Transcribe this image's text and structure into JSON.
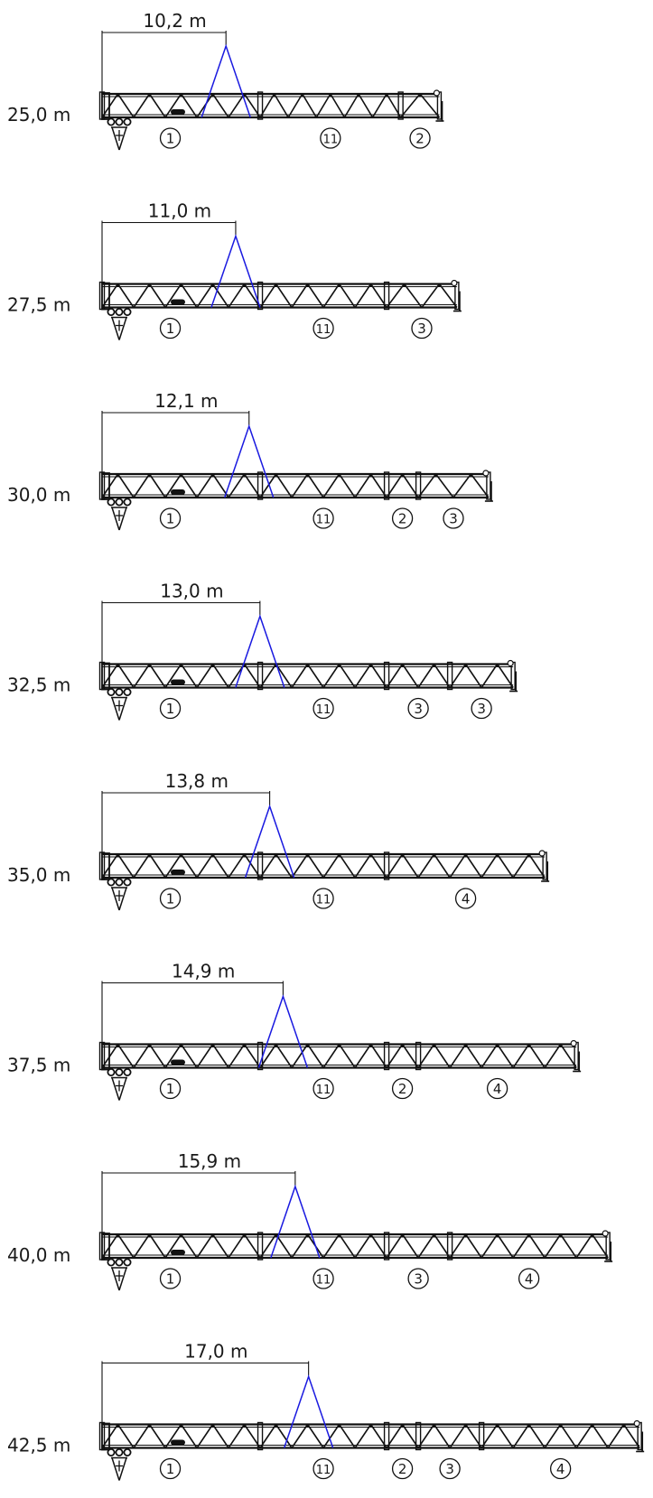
{
  "configurations": [
    {
      "length_label": "25,0 m",
      "span_label": "10,2 m",
      "span_m": 10.2,
      "segments": [
        {
          "label": "1",
          "units": 9
        },
        {
          "label": "11",
          "units": 8
        },
        {
          "label": "2",
          "units": 2.2
        }
      ]
    },
    {
      "length_label": "27,5 m",
      "span_label": "11,0 m",
      "span_m": 11.0,
      "segments": [
        {
          "label": "1",
          "units": 9
        },
        {
          "label": "11",
          "units": 7.2
        },
        {
          "label": "3",
          "units": 4
        }
      ]
    },
    {
      "length_label": "30,0 m",
      "span_label": "12,1 m",
      "span_m": 12.1,
      "segments": [
        {
          "label": "1",
          "units": 9
        },
        {
          "label": "11",
          "units": 7.2
        },
        {
          "label": "2",
          "units": 1.8
        },
        {
          "label": "3",
          "units": 4
        }
      ]
    },
    {
      "length_label": "32,5 m",
      "span_label": "13,0 m",
      "span_m": 13.0,
      "segments": [
        {
          "label": "1",
          "units": 9
        },
        {
          "label": "11",
          "units": 7.2
        },
        {
          "label": "3",
          "units": 3.6
        },
        {
          "label": "3",
          "units": 3.6
        }
      ]
    },
    {
      "length_label": "35,0 m",
      "span_label": "13,8 m",
      "span_m": 13.8,
      "segments": [
        {
          "label": "1",
          "units": 9
        },
        {
          "label": "11",
          "units": 7.2
        },
        {
          "label": "4",
          "units": 9
        }
      ]
    },
    {
      "length_label": "37,5 m",
      "span_label": "14,9 m",
      "span_m": 14.9,
      "segments": [
        {
          "label": "1",
          "units": 9
        },
        {
          "label": "11",
          "units": 7.2
        },
        {
          "label": "2",
          "units": 1.8
        },
        {
          "label": "4",
          "units": 9
        }
      ]
    },
    {
      "length_label": "40,0 m",
      "span_label": "15,9 m",
      "span_m": 15.9,
      "segments": [
        {
          "label": "1",
          "units": 9
        },
        {
          "label": "11",
          "units": 7.2
        },
        {
          "label": "3",
          "units": 3.6
        },
        {
          "label": "4",
          "units": 9
        }
      ]
    },
    {
      "length_label": "42,5 m",
      "span_label": "17,0 m",
      "span_m": 17.0,
      "segments": [
        {
          "label": "1",
          "units": 9
        },
        {
          "label": "11",
          "units": 7.2
        },
        {
          "label": "2",
          "units": 1.8
        },
        {
          "label": "3",
          "units": 3.6
        },
        {
          "label": "4",
          "units": 9
        }
      ]
    }
  ],
  "colors": {
    "line": "#111111",
    "guy": "#1a1ae0",
    "text": "#1a1a1a"
  }
}
